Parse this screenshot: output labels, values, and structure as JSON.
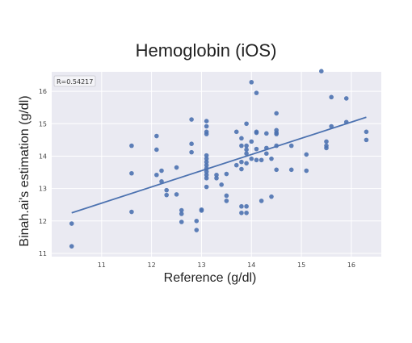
{
  "chart_data": {
    "type": "scatter",
    "title": "Hemoglobin (iOS)",
    "xlabel": "Reference (g/dl)",
    "ylabel": "Binah.ai's estimation (g/dl)",
    "xlim": [
      10.0,
      16.6
    ],
    "ylim": [
      10.9,
      16.6
    ],
    "xticks": [
      11,
      12,
      13,
      14,
      15,
      16
    ],
    "yticks": [
      11,
      12,
      13,
      14,
      15,
      16
    ],
    "grid": true,
    "annotation": "R=0.54217",
    "colors": {
      "point": "#4c72b0",
      "line": "#4c72b0",
      "plot_bg": "#eaeaf2",
      "grid": "#ffffff"
    },
    "regression_line": {
      "x": [
        10.4,
        16.3
      ],
      "y": [
        12.25,
        15.2
      ]
    },
    "points": [
      [
        10.4,
        11.92
      ],
      [
        10.4,
        11.22
      ],
      [
        11.6,
        14.32
      ],
      [
        11.6,
        13.47
      ],
      [
        11.6,
        12.28
      ],
      [
        12.1,
        14.62
      ],
      [
        12.1,
        14.2
      ],
      [
        12.1,
        13.42
      ],
      [
        12.2,
        13.55
      ],
      [
        12.2,
        13.22
      ],
      [
        12.3,
        12.95
      ],
      [
        12.3,
        12.8
      ],
      [
        12.5,
        13.65
      ],
      [
        12.5,
        12.82
      ],
      [
        12.6,
        12.33
      ],
      [
        12.6,
        12.22
      ],
      [
        12.6,
        11.97
      ],
      [
        12.8,
        15.13
      ],
      [
        12.8,
        14.38
      ],
      [
        12.8,
        14.12
      ],
      [
        12.9,
        12.0
      ],
      [
        12.9,
        11.72
      ],
      [
        13.0,
        12.35
      ],
      [
        13.0,
        12.32
      ],
      [
        13.1,
        15.08
      ],
      [
        13.1,
        14.92
      ],
      [
        13.1,
        14.75
      ],
      [
        13.1,
        14.68
      ],
      [
        13.1,
        14.02
      ],
      [
        13.1,
        13.92
      ],
      [
        13.1,
        13.82
      ],
      [
        13.1,
        13.72
      ],
      [
        13.1,
        13.62
      ],
      [
        13.1,
        13.52
      ],
      [
        13.1,
        13.42
      ],
      [
        13.1,
        13.32
      ],
      [
        13.1,
        13.05
      ],
      [
        13.3,
        13.42
      ],
      [
        13.3,
        13.32
      ],
      [
        13.4,
        13.12
      ],
      [
        13.5,
        13.45
      ],
      [
        13.5,
        12.78
      ],
      [
        13.5,
        12.62
      ],
      [
        13.7,
        14.75
      ],
      [
        13.7,
        13.72
      ],
      [
        13.8,
        14.55
      ],
      [
        13.8,
        14.32
      ],
      [
        13.8,
        13.82
      ],
      [
        13.8,
        13.6
      ],
      [
        13.8,
        12.45
      ],
      [
        13.8,
        12.25
      ],
      [
        13.9,
        15.0
      ],
      [
        13.9,
        14.32
      ],
      [
        13.9,
        14.2
      ],
      [
        13.9,
        14.08
      ],
      [
        13.9,
        13.78
      ],
      [
        13.9,
        12.45
      ],
      [
        13.9,
        12.25
      ],
      [
        14.0,
        16.28
      ],
      [
        14.0,
        14.45
      ],
      [
        14.0,
        13.92
      ],
      [
        14.1,
        15.95
      ],
      [
        14.1,
        14.75
      ],
      [
        14.1,
        14.72
      ],
      [
        14.1,
        14.22
      ],
      [
        14.1,
        13.88
      ],
      [
        14.2,
        13.88
      ],
      [
        14.2,
        12.62
      ],
      [
        14.3,
        14.7
      ],
      [
        14.3,
        14.25
      ],
      [
        14.3,
        14.08
      ],
      [
        14.4,
        13.92
      ],
      [
        14.4,
        12.75
      ],
      [
        14.5,
        15.32
      ],
      [
        14.5,
        14.8
      ],
      [
        14.5,
        14.72
      ],
      [
        14.5,
        14.68
      ],
      [
        14.5,
        14.32
      ],
      [
        14.5,
        13.58
      ],
      [
        14.8,
        14.32
      ],
      [
        14.8,
        13.58
      ],
      [
        15.1,
        14.05
      ],
      [
        15.1,
        13.55
      ],
      [
        15.4,
        16.62
      ],
      [
        15.5,
        14.45
      ],
      [
        15.5,
        14.32
      ],
      [
        15.5,
        14.25
      ],
      [
        15.6,
        15.82
      ],
      [
        15.6,
        14.92
      ],
      [
        15.9,
        15.78
      ],
      [
        15.9,
        15.05
      ],
      [
        16.3,
        14.75
      ],
      [
        16.3,
        14.5
      ]
    ]
  }
}
